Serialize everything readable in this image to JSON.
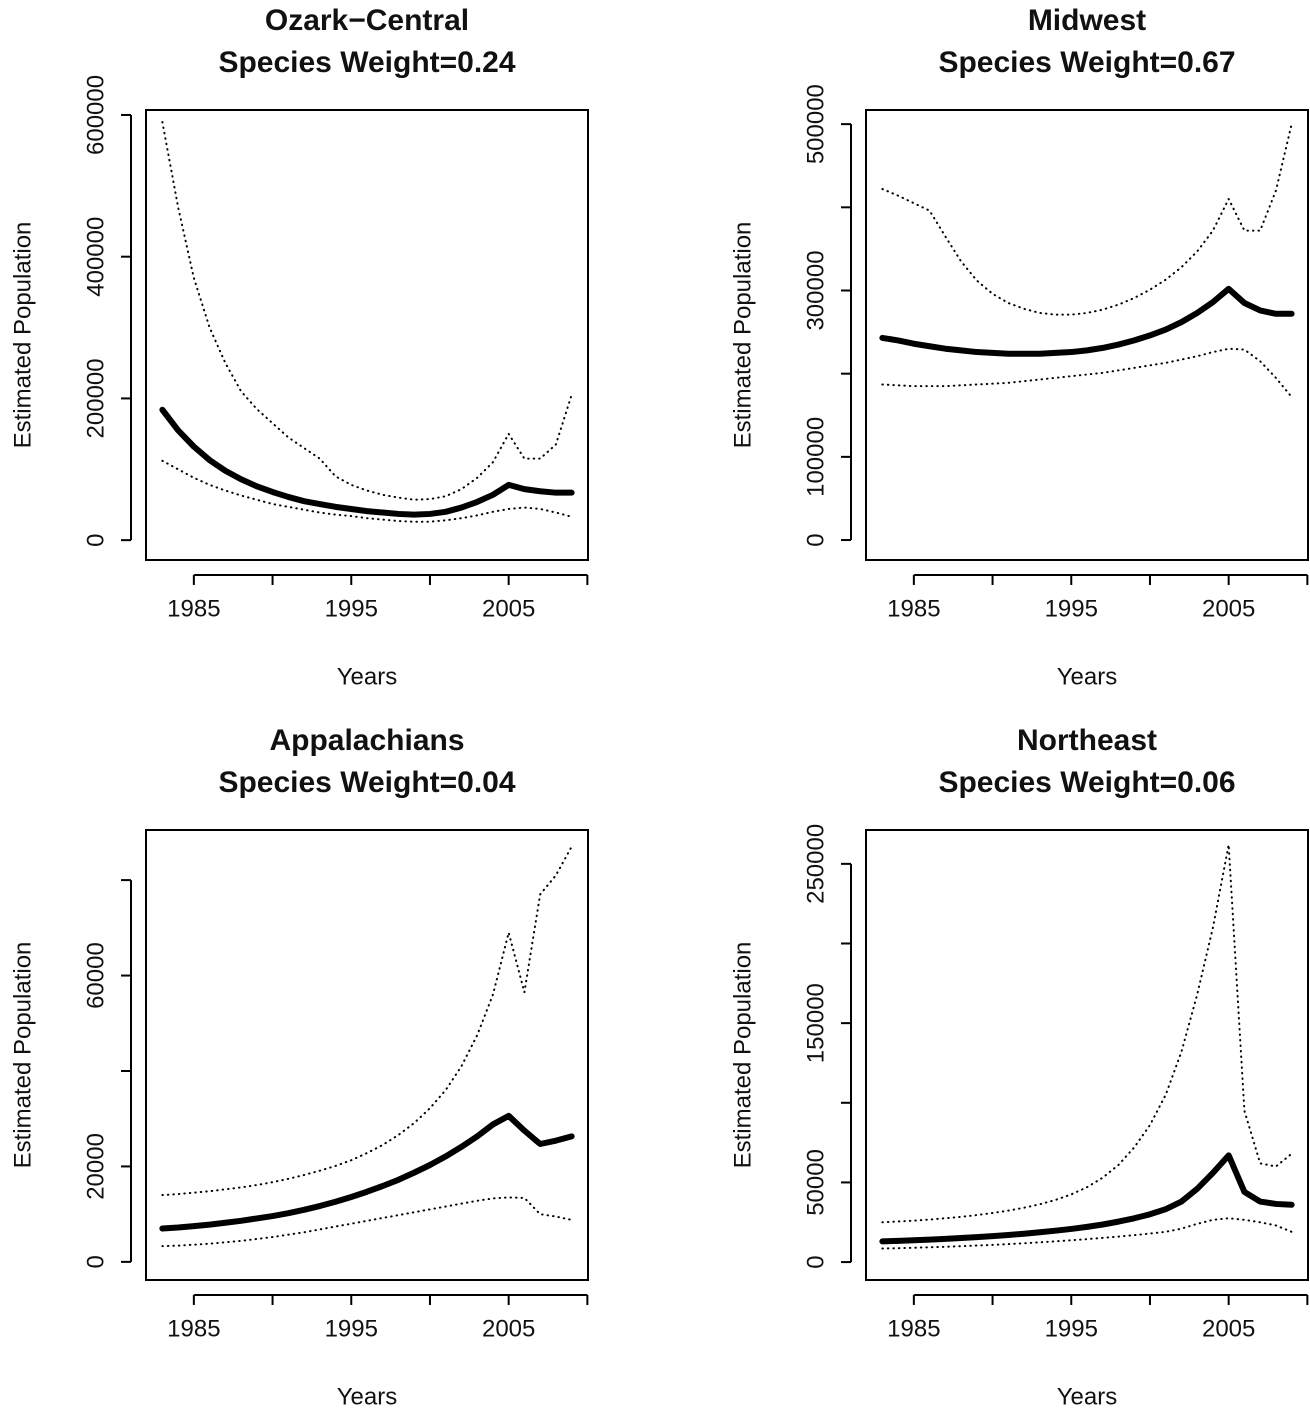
{
  "chart_data": [
    {
      "type": "line",
      "title": "Ozark−Central",
      "subtitle": "Species Weight=0.24",
      "xlabel": "Years",
      "ylabel": "Estimated Population",
      "x": [
        1983,
        1984,
        1985,
        1986,
        1987,
        1988,
        1989,
        1990,
        1991,
        1992,
        1993,
        1994,
        1995,
        1996,
        1997,
        1998,
        1999,
        2000,
        2001,
        2002,
        2003,
        2004,
        2005,
        2006,
        2007,
        2008,
        2009
      ],
      "xlim": [
        1981.96,
        2010.04
      ],
      "xticks": [
        1985,
        1995,
        2005
      ],
      "xminorticks": [
        1990,
        2000,
        2010
      ],
      "ylim": [
        -28000,
        607000
      ],
      "yticks": [
        0,
        200000,
        400000,
        600000
      ],
      "yminorticks": [],
      "series": [
        {
          "color": "#000000",
          "style": "solid",
          "width": 6,
          "values": [
            184000,
            155000,
            132000,
            113000,
            98000,
            86000,
            76000,
            68000,
            61000,
            55000,
            51000,
            47000,
            44000,
            41000,
            39000,
            37000,
            36000,
            37000,
            40000,
            46000,
            54000,
            64000,
            78000,
            72000,
            69000,
            67000,
            67000
          ]
        },
        {
          "color": "#000000",
          "style": "dotted",
          "width": 2,
          "values": [
            590000,
            470000,
            370000,
            300000,
            250000,
            210000,
            185000,
            165000,
            145000,
            130000,
            115000,
            90000,
            78000,
            70000,
            64000,
            60000,
            57000,
            58000,
            62000,
            72000,
            88000,
            110000,
            150000,
            115000,
            115000,
            135000,
            205000
          ]
        },
        {
          "color": "#000000",
          "style": "dotted",
          "width": 2,
          "values": [
            112000,
            100000,
            88000,
            78000,
            70000,
            63000,
            57000,
            51000,
            47000,
            43000,
            39000,
            36000,
            34000,
            31000,
            29000,
            27000,
            26000,
            26000,
            28000,
            31000,
            35000,
            40000,
            44000,
            46000,
            44000,
            39000,
            33000
          ]
        }
      ]
    },
    {
      "type": "line",
      "title": "Midwest",
      "subtitle": "Species Weight=0.67",
      "xlabel": "Years",
      "ylabel": "Estimated Population",
      "x": [
        1983,
        1984,
        1985,
        1986,
        1987,
        1988,
        1989,
        1990,
        1991,
        1992,
        1993,
        1994,
        1995,
        1996,
        1997,
        1998,
        1999,
        2000,
        2001,
        2002,
        2003,
        2004,
        2005,
        2006,
        2007,
        2008,
        2009
      ],
      "xlim": [
        1981.96,
        2010.04
      ],
      "xticks": [
        1985,
        1995,
        2005
      ],
      "xminorticks": [
        1990,
        2000,
        2010
      ],
      "ylim": [
        -24000,
        517000
      ],
      "yticks": [
        0,
        100000,
        300000,
        500000
      ],
      "yminorticks": [
        200000,
        400000
      ],
      "series": [
        {
          "color": "#000000",
          "style": "solid",
          "width": 6,
          "values": [
            243000,
            240000,
            236000,
            233000,
            230000,
            228000,
            226000,
            225000,
            224000,
            224000,
            224000,
            225000,
            226000,
            228000,
            231000,
            235000,
            240000,
            246000,
            253000,
            262000,
            273000,
            286000,
            302000,
            285000,
            276000,
            272000,
            272000
          ]
        },
        {
          "color": "#000000",
          "style": "dotted",
          "width": 2,
          "values": [
            422000,
            414000,
            405000,
            396000,
            365000,
            335000,
            312000,
            296000,
            285000,
            278000,
            273000,
            271000,
            271000,
            273000,
            277000,
            283000,
            291000,
            301000,
            313000,
            328000,
            347000,
            372000,
            410000,
            372000,
            372000,
            420000,
            500000
          ]
        },
        {
          "color": "#000000",
          "style": "dotted",
          "width": 2,
          "values": [
            187000,
            186000,
            185000,
            185000,
            185000,
            186000,
            187000,
            188000,
            189000,
            191000,
            193000,
            195000,
            197000,
            199000,
            201000,
            204000,
            207000,
            210000,
            213000,
            217000,
            221000,
            226000,
            230000,
            229000,
            215000,
            195000,
            172000
          ]
        }
      ]
    },
    {
      "type": "line",
      "title": "Appalachians",
      "subtitle": "Species Weight=0.04",
      "xlabel": "Years",
      "ylabel": "Estimated Population",
      "x": [
        1983,
        1984,
        1985,
        1986,
        1987,
        1988,
        1989,
        1990,
        1991,
        1992,
        1993,
        1994,
        1995,
        1996,
        1997,
        1998,
        1999,
        2000,
        2001,
        2002,
        2003,
        2004,
        2005,
        2006,
        2007,
        2008,
        2009
      ],
      "xlim": [
        1981.96,
        2010.04
      ],
      "xticks": [
        1985,
        1995,
        2005
      ],
      "xminorticks": [
        1990,
        2000,
        2010
      ],
      "ylim": [
        -3800,
        90500
      ],
      "yticks": [
        0,
        20000,
        60000
      ],
      "yminorticks": [
        40000,
        80000
      ],
      "series": [
        {
          "color": "#000000",
          "style": "solid",
          "width": 6,
          "values": [
            7000,
            7200,
            7500,
            7800,
            8200,
            8600,
            9100,
            9600,
            10200,
            10900,
            11700,
            12600,
            13600,
            14700,
            15900,
            17200,
            18700,
            20300,
            22100,
            24100,
            26300,
            28800,
            30600,
            27500,
            24700,
            25400,
            26300
          ]
        },
        {
          "color": "#000000",
          "style": "dotted",
          "width": 2,
          "values": [
            14000,
            14200,
            14500,
            14800,
            15200,
            15600,
            16100,
            16700,
            17400,
            18200,
            19100,
            20100,
            21300,
            22800,
            24500,
            26600,
            29100,
            32200,
            36000,
            41000,
            47500,
            56000,
            69000,
            56500,
            77000,
            81000,
            87000
          ]
        },
        {
          "color": "#000000",
          "style": "dotted",
          "width": 2,
          "values": [
            3300,
            3400,
            3600,
            3800,
            4100,
            4400,
            4800,
            5200,
            5700,
            6200,
            6800,
            7400,
            8000,
            8600,
            9200,
            9800,
            10400,
            11000,
            11600,
            12200,
            12800,
            13300,
            13500,
            13400,
            10000,
            9500,
            8800
          ]
        }
      ]
    },
    {
      "type": "line",
      "title": "Northeast",
      "subtitle": "Species Weight=0.06",
      "xlabel": "Years",
      "ylabel": "Estimated Population",
      "x": [
        1983,
        1984,
        1985,
        1986,
        1987,
        1988,
        1989,
        1990,
        1991,
        1992,
        1993,
        1994,
        1995,
        1996,
        1997,
        1998,
        1999,
        2000,
        2001,
        2002,
        2003,
        2004,
        2005,
        2006,
        2007,
        2008,
        2009
      ],
      "xlim": [
        1981.96,
        2010.04
      ],
      "xticks": [
        1985,
        1995,
        2005
      ],
      "xminorticks": [
        1990,
        2000,
        2010
      ],
      "ylim": [
        -11250,
        271250
      ],
      "yticks": [
        0,
        50000,
        150000,
        250000
      ],
      "yminorticks": [
        100000,
        200000
      ],
      "series": [
        {
          "color": "#000000",
          "style": "solid",
          "width": 6,
          "values": [
            13000,
            13300,
            13700,
            14100,
            14600,
            15100,
            15700,
            16300,
            17000,
            17800,
            18700,
            19700,
            20800,
            22100,
            23600,
            25400,
            27500,
            30000,
            33200,
            38000,
            46000,
            56000,
            67000,
            44000,
            38000,
            36500,
            36000
          ]
        },
        {
          "color": "#000000",
          "style": "dotted",
          "width": 2,
          "values": [
            25000,
            25500,
            26000,
            26700,
            27500,
            28400,
            29500,
            30800,
            32300,
            34100,
            36300,
            39000,
            42500,
            47000,
            53000,
            61000,
            72000,
            86000,
            105000,
            132000,
            168000,
            210000,
            262000,
            95000,
            62000,
            60000,
            68000
          ]
        },
        {
          "color": "#000000",
          "style": "dotted",
          "width": 2,
          "values": [
            8500,
            8700,
            9000,
            9300,
            9600,
            10000,
            10400,
            10800,
            11300,
            11800,
            12400,
            13000,
            13700,
            14400,
            15200,
            16000,
            16900,
            17900,
            19000,
            21000,
            24000,
            26500,
            27500,
            26500,
            25000,
            23000,
            19000
          ]
        }
      ]
    }
  ]
}
